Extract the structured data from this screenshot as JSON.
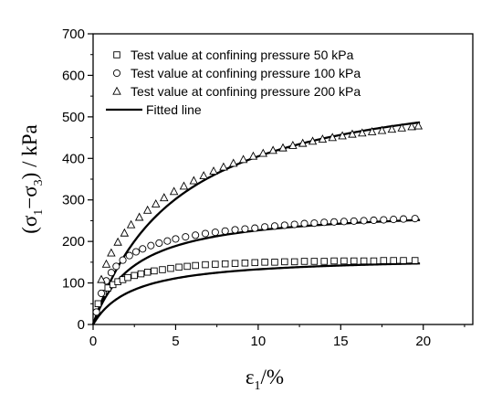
{
  "chart_data": {
    "type": "scatter",
    "xlabel": {
      "main": "ε",
      "sub": "1",
      "rest": "/%"
    },
    "ylabel": {
      "open": "(σ",
      "sub1": "1",
      "dash": "−σ",
      "sub3": "3",
      "rest": ") / kPa"
    },
    "xlim": [
      0,
      23
    ],
    "ylim": [
      0,
      700
    ],
    "x_ticks": [
      0,
      5,
      10,
      15,
      20
    ],
    "y_ticks": [
      0,
      100,
      200,
      300,
      400,
      500,
      600,
      700
    ],
    "grid": false,
    "legend_position": "top-left",
    "series": [
      {
        "name": "Test value at confining pressure 50 kPa",
        "marker": "square",
        "x": [
          0.3,
          0.6,
          0.9,
          1.2,
          1.5,
          1.8,
          2.1,
          2.5,
          2.9,
          3.3,
          3.7,
          4.2,
          4.7,
          5.2,
          5.7,
          6.2,
          6.8,
          7.4,
          8.0,
          8.6,
          9.2,
          9.8,
          10.4,
          11.0,
          11.6,
          12.2,
          12.8,
          13.4,
          14.0,
          14.6,
          15.2,
          15.8,
          16.4,
          17.0,
          17.6,
          18.2,
          18.8,
          19.5
        ],
        "y": [
          50,
          75,
          88,
          96,
          103,
          108,
          113,
          118,
          122,
          126,
          129,
          132,
          135,
          138,
          140,
          142,
          144,
          145,
          146,
          147,
          148,
          149,
          150,
          150,
          151,
          151,
          152,
          152,
          152,
          153,
          153,
          153,
          153,
          153,
          154,
          154,
          154,
          154
        ]
      },
      {
        "name": "Test value at confining pressure 100 kPa",
        "marker": "circle",
        "x": [
          0.2,
          0.5,
          0.8,
          1.1,
          1.4,
          1.8,
          2.2,
          2.6,
          3.0,
          3.5,
          4.0,
          4.5,
          5.0,
          5.6,
          6.2,
          6.8,
          7.4,
          8.0,
          8.6,
          9.2,
          9.8,
          10.4,
          11.0,
          11.6,
          12.2,
          12.8,
          13.4,
          14.0,
          14.6,
          15.2,
          15.8,
          16.4,
          17.0,
          17.6,
          18.2,
          18.8,
          19.5
        ],
        "y": [
          30,
          75,
          105,
          125,
          140,
          155,
          166,
          175,
          182,
          190,
          196,
          201,
          206,
          211,
          215,
          219,
          222,
          225,
          228,
          230,
          232,
          235,
          237,
          239,
          241,
          243,
          244,
          246,
          247,
          248,
          249,
          250,
          251,
          252,
          253,
          254,
          255
        ]
      },
      {
        "name": "Test value at confining pressure 200 kPa",
        "marker": "triangle",
        "x": [
          0.5,
          0.8,
          1.1,
          1.5,
          1.9,
          2.3,
          2.8,
          3.3,
          3.8,
          4.3,
          4.9,
          5.5,
          6.1,
          6.7,
          7.3,
          7.9,
          8.5,
          9.1,
          9.7,
          10.3,
          10.9,
          11.5,
          12.1,
          12.7,
          13.3,
          13.9,
          14.5,
          15.1,
          15.7,
          16.3,
          16.9,
          17.5,
          18.1,
          18.7,
          19.3,
          19.7
        ],
        "y": [
          108,
          145,
          172,
          198,
          220,
          240,
          258,
          275,
          290,
          305,
          320,
          333,
          346,
          358,
          369,
          379,
          388,
          397,
          405,
          412,
          419,
          425,
          431,
          436,
          441,
          446,
          450,
          454,
          458,
          461,
          464,
          467,
          470,
          473,
          476,
          478
        ]
      }
    ],
    "fitted": {
      "name": "Fitted line",
      "curves": [
        {
          "a": 0.0147,
          "b": 0.00606
        },
        {
          "a": 0.0088,
          "b": 0.00353
        },
        {
          "a": 0.0084,
          "b": 0.00163
        }
      ]
    }
  }
}
